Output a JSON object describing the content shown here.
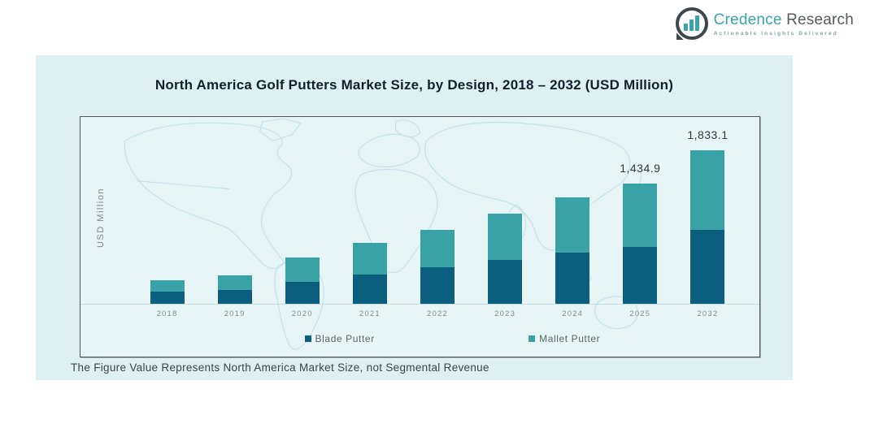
{
  "logo": {
    "brand_primary": "Credence",
    "brand_secondary": "Research",
    "tagline": "Actionable Insights Delivered",
    "colors": {
      "primary": "#3aa6ab",
      "secondary": "#565b60"
    }
  },
  "panel": {
    "background": "#dff0f2"
  },
  "chart": {
    "title": "North America Golf Putters Market Size, by Design, 2018 – 2032 (USD Million)",
    "y_axis_label": "USD Million",
    "note": "The Figure Value Represents North America Market Size, not Segmental Revenue"
  },
  "chart_data": {
    "type": "bar",
    "stacked": true,
    "title": "North America Golf Putters Market Size, by Design, 2018 – 2032 (USD Million)",
    "ylabel": "USD Million",
    "categories": [
      "2018",
      "2019",
      "2020",
      "2021",
      "2022",
      "2023",
      "2024",
      "2025",
      "2032"
    ],
    "series": [
      {
        "name": "Blade Putter",
        "color": "#0c5e7f",
        "values": [
          150,
          165,
          262,
          349,
          436,
          524,
          611,
          679,
          880
        ]
      },
      {
        "name": "Mallet Putter",
        "color": "#38a2a7",
        "values": [
          131,
          174,
          291,
          378,
          447,
          553,
          659,
          755.9,
          953.1
        ]
      }
    ],
    "totals": [
      281,
      339,
      553,
      727,
      883,
      1077,
      1270,
      1434.9,
      1833.1
    ],
    "data_labels": {
      "2025": "1,434.9",
      "2032": "1,833.1"
    },
    "legend_position": "bottom-inside",
    "grid": false,
    "background_decoration": "world-map"
  }
}
